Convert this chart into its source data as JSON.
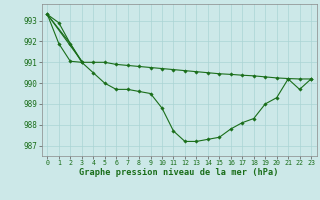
{
  "title": "Graphe pression niveau de la mer (hPa)",
  "background_color": "#cce8e8",
  "grid_color": "#aad4d4",
  "line_color": "#1a6e1a",
  "xlim": [
    -0.5,
    23.5
  ],
  "ylim": [
    986.5,
    993.8
  ],
  "yticks": [
    987,
    988,
    989,
    990,
    991,
    992,
    993
  ],
  "xticks": [
    0,
    1,
    2,
    3,
    4,
    5,
    6,
    7,
    8,
    9,
    10,
    11,
    12,
    13,
    14,
    15,
    16,
    17,
    18,
    19,
    20,
    21,
    22,
    23
  ],
  "series1": [
    993.3,
    992.9,
    991.9,
    991.0,
    990.5,
    990.0,
    989.7,
    989.7,
    989.6,
    989.5,
    988.8,
    987.7,
    987.2,
    987.2,
    987.3,
    987.4,
    987.8,
    988.1,
    988.3,
    989.0,
    989.3,
    990.2,
    989.7,
    990.2
  ],
  "series2": [
    993.3,
    991.9,
    991.05,
    991.0,
    991.0,
    991.0,
    990.9,
    990.85,
    990.8,
    990.75,
    990.7,
    990.65,
    990.6,
    990.55,
    990.5,
    990.45,
    990.42,
    990.38,
    990.35,
    990.3,
    990.25,
    990.22,
    990.2,
    990.2
  ],
  "series3_x": [
    0,
    3
  ],
  "series3_y": [
    993.3,
    991.05
  ],
  "series4_x": [
    0,
    2,
    3
  ],
  "series4_y": [
    993.3,
    991.9,
    991.05
  ]
}
